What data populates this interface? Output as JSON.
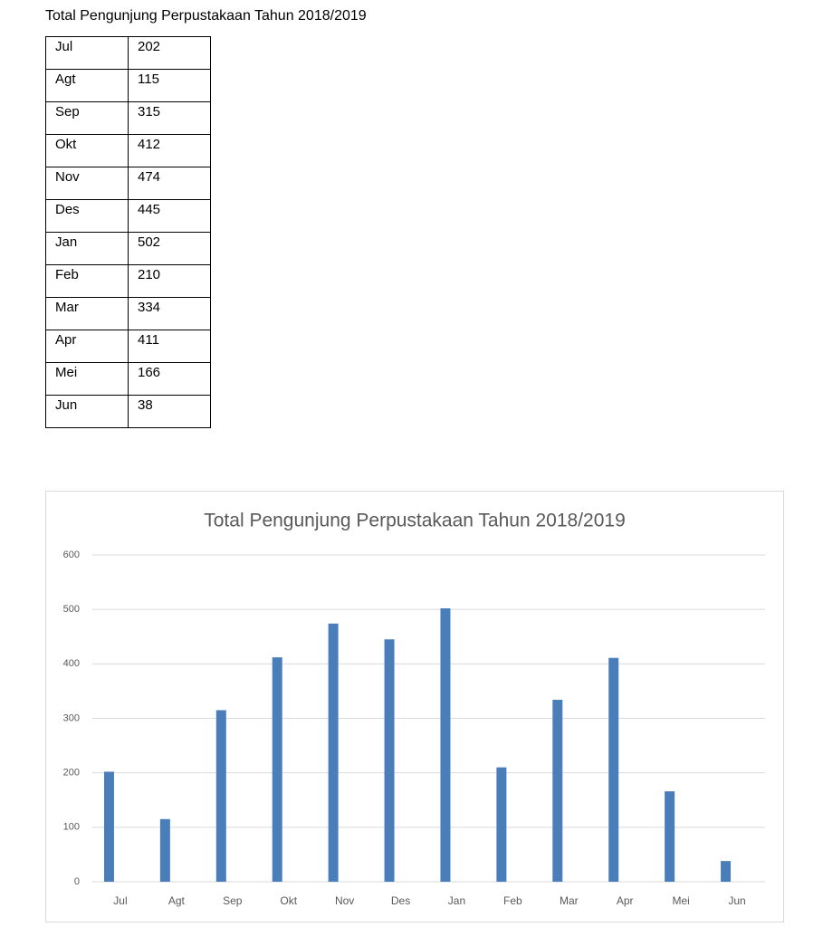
{
  "document": {
    "title": "Total Pengunjung Perpustakaan Tahun 2018/2019",
    "table": {
      "rows": [
        [
          "Jul",
          202
        ],
        [
          "Agt",
          115
        ],
        [
          "Sep",
          315
        ],
        [
          "Okt",
          412
        ],
        [
          "Nov",
          474
        ],
        [
          "Des",
          445
        ],
        [
          "Jan",
          502
        ],
        [
          "Feb",
          210
        ],
        [
          "Mar",
          334
        ],
        [
          "Apr",
          411
        ],
        [
          "Mei",
          166
        ],
        [
          "Jun",
          38
        ]
      ]
    }
  },
  "chart_data": {
    "type": "bar",
    "title": "Total Pengunjung Perpustakaan Tahun 2018/2019",
    "categories": [
      "Jul",
      "Agt",
      "Sep",
      "Okt",
      "Nov",
      "Des",
      "Jan",
      "Feb",
      "Mar",
      "Apr",
      "Mei",
      "Jun"
    ],
    "values": [
      202,
      115,
      315,
      412,
      474,
      445,
      502,
      210,
      334,
      411,
      166,
      38
    ],
    "color": "#4a7ebb",
    "ylim": [
      0,
      600
    ],
    "yticks": [
      0,
      100,
      200,
      300,
      400,
      500,
      600
    ],
    "grid": true
  }
}
